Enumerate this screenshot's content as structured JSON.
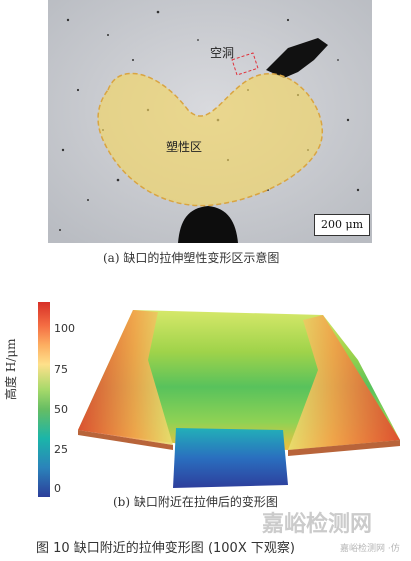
{
  "panel_a": {
    "label_void": "空洞",
    "label_plastic": "塑性区",
    "scale_bar": "200 μm",
    "caption": "(a) 缺口的拉伸塑性变形区示意图"
  },
  "panel_b": {
    "axis_label": "高度 H/μm",
    "ticks": [
      "100",
      "75",
      "50",
      "25",
      "0"
    ],
    "caption": "(b) 缺口附近在拉伸后的变形图"
  },
  "figure_title": "图 10   缺口附近的拉伸变形图 (100X 下观察)",
  "watermark": "嘉峪检测网",
  "watermark_sub": "嘉峪检测网 ·仿"
}
